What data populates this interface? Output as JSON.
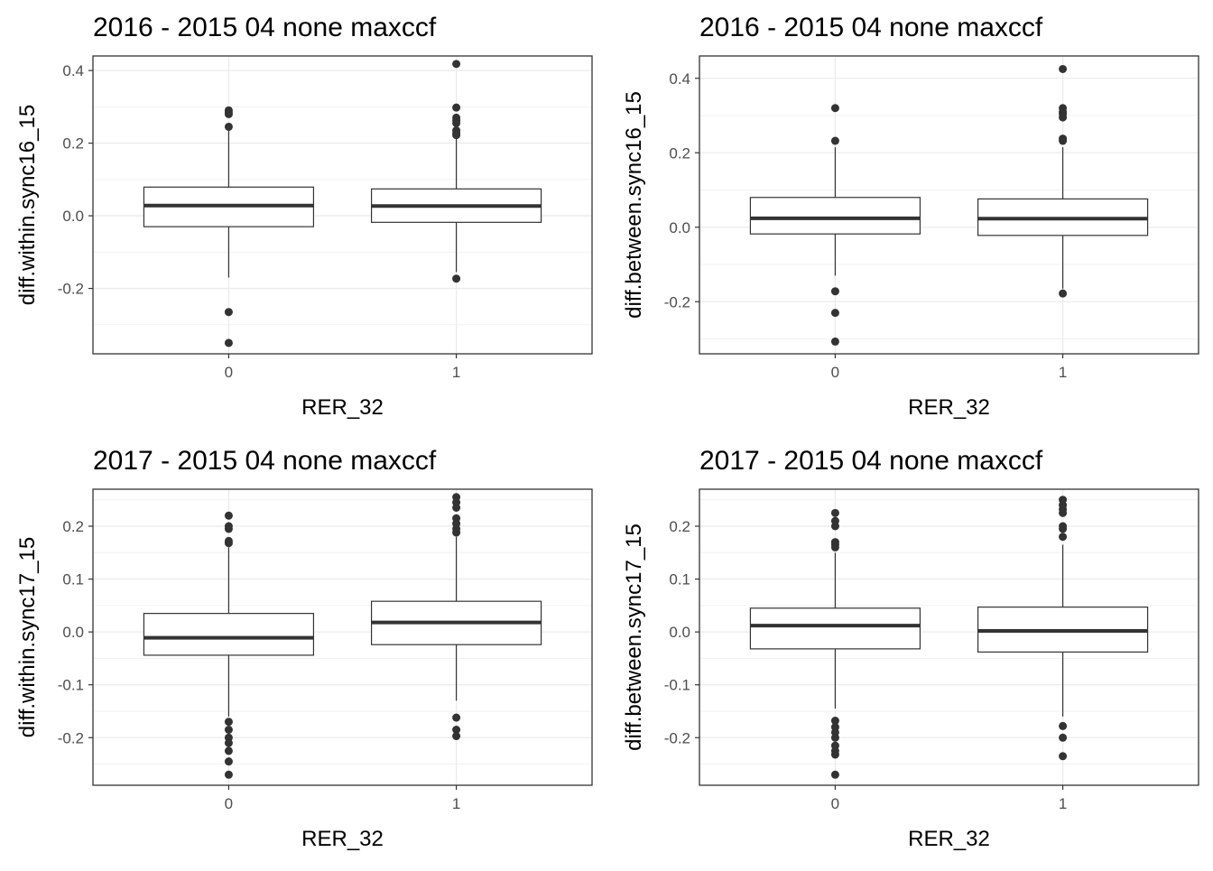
{
  "chart_data": [
    {
      "type": "box",
      "title": "2016 - 2015 04 none maxccf",
      "xlabel": "RER_32",
      "ylabel": "diff.within.sync16_15",
      "categories": [
        "0",
        "1"
      ],
      "ylim": [
        -0.38,
        0.44
      ],
      "yticks": [
        -0.2,
        0.0,
        0.2,
        0.4
      ],
      "ytick_labels": [
        "-0.2",
        "0.0",
        "0.2",
        "0.4"
      ],
      "boxes": [
        {
          "category": "0",
          "q1": -0.03,
          "median": 0.028,
          "q3": 0.079,
          "whisker_low": -0.17,
          "whisker_high": 0.24,
          "outliers": [
            0.29,
            0.285,
            0.28,
            0.245,
            -0.265,
            -0.35
          ]
        },
        {
          "category": "1",
          "q1": -0.018,
          "median": 0.027,
          "q3": 0.074,
          "whisker_low": -0.155,
          "whisker_high": 0.215,
          "outliers": [
            0.418,
            0.298,
            0.27,
            0.262,
            0.255,
            0.235,
            0.228,
            0.222,
            -0.173
          ]
        }
      ]
    },
    {
      "type": "box",
      "title": "2016 - 2015 04 none maxccf",
      "xlabel": "RER_32",
      "ylabel": "diff.between.sync16_15",
      "categories": [
        "0",
        "1"
      ],
      "ylim": [
        -0.34,
        0.46
      ],
      "yticks": [
        -0.2,
        0.0,
        0.2,
        0.4
      ],
      "ytick_labels": [
        "-0.2",
        "0.0",
        "0.2",
        "0.4"
      ],
      "boxes": [
        {
          "category": "0",
          "q1": -0.018,
          "median": 0.024,
          "q3": 0.08,
          "whisker_low": -0.13,
          "whisker_high": 0.215,
          "outliers": [
            0.32,
            0.232,
            -0.172,
            -0.23,
            -0.307
          ]
        },
        {
          "category": "1",
          "q1": -0.022,
          "median": 0.023,
          "q3": 0.076,
          "whisker_low": -0.165,
          "whisker_high": 0.215,
          "outliers": [
            0.425,
            0.32,
            0.31,
            0.305,
            0.295,
            0.238,
            0.232,
            -0.178
          ]
        }
      ]
    },
    {
      "type": "box",
      "title": "2017 - 2015 04 none maxccf",
      "xlabel": "RER_32",
      "ylabel": "diff.within.sync17_15",
      "categories": [
        "0",
        "1"
      ],
      "ylim": [
        -0.29,
        0.27
      ],
      "yticks": [
        -0.2,
        -0.1,
        0.0,
        0.1,
        0.2
      ],
      "ytick_labels": [
        "-0.2",
        "-0.1",
        "0.0",
        "0.1",
        "0.2"
      ],
      "boxes": [
        {
          "category": "0",
          "q1": -0.044,
          "median": -0.011,
          "q3": 0.035,
          "whisker_low": -0.16,
          "whisker_high": 0.16,
          "outliers": [
            0.22,
            0.2,
            0.195,
            0.172,
            0.168,
            -0.17,
            -0.185,
            -0.2,
            -0.21,
            -0.225,
            -0.245,
            -0.27
          ]
        },
        {
          "category": "1",
          "q1": -0.024,
          "median": 0.018,
          "q3": 0.058,
          "whisker_low": -0.13,
          "whisker_high": 0.18,
          "outliers": [
            0.255,
            0.245,
            0.235,
            0.215,
            0.205,
            0.195,
            0.188,
            -0.162,
            -0.185,
            -0.197
          ]
        }
      ]
    },
    {
      "type": "box",
      "title": "2017 - 2015 04 none maxccf",
      "xlabel": "RER_32",
      "ylabel": "diff.between.sync17_15",
      "categories": [
        "0",
        "1"
      ],
      "ylim": [
        -0.29,
        0.27
      ],
      "yticks": [
        -0.2,
        -0.1,
        0.0,
        0.1,
        0.2
      ],
      "ytick_labels": [
        "-0.2",
        "-0.1",
        "0.0",
        "0.1",
        "0.2"
      ],
      "boxes": [
        {
          "category": "0",
          "q1": -0.032,
          "median": 0.012,
          "q3": 0.045,
          "whisker_low": -0.145,
          "whisker_high": 0.15,
          "outliers": [
            0.225,
            0.21,
            0.2,
            0.17,
            0.165,
            0.16,
            -0.168,
            -0.18,
            -0.19,
            -0.2,
            -0.215,
            -0.225,
            -0.232,
            -0.27
          ]
        },
        {
          "category": "1",
          "q1": -0.038,
          "median": 0.002,
          "q3": 0.047,
          "whisker_low": -0.16,
          "whisker_high": 0.165,
          "outliers": [
            0.25,
            0.24,
            0.232,
            0.225,
            0.2,
            0.195,
            0.18,
            -0.178,
            -0.2,
            -0.235
          ]
        }
      ]
    }
  ]
}
